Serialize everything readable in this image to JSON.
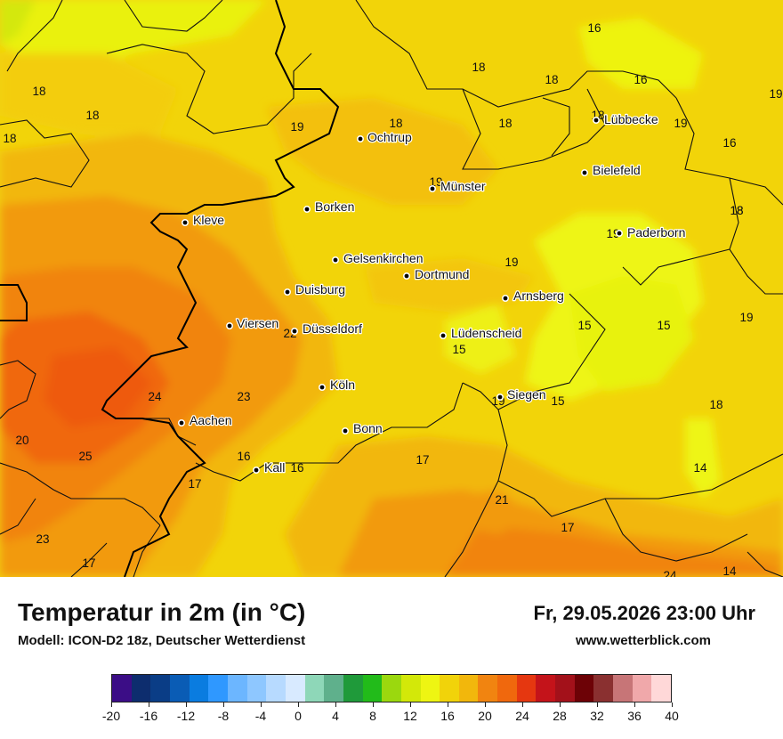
{
  "header": {
    "title": "Temperatur in 2m (in °C)",
    "model": "Modell: ICON-D2 18z, Deutscher Wetterdienst",
    "datetime": "Fr, 29.05.2026 23:00 Uhr",
    "website": "www.wetterblick.com"
  },
  "cities": [
    {
      "name": "Ochtrup"
    },
    {
      "name": "Lübbecke"
    },
    {
      "name": "Bielefeld"
    },
    {
      "name": "Münster"
    },
    {
      "name": "Borken"
    },
    {
      "name": "Kleve"
    },
    {
      "name": "Paderborn"
    },
    {
      "name": "Gelsenkirchen"
    },
    {
      "name": "Dortmund"
    },
    {
      "name": "Duisburg"
    },
    {
      "name": "Arnsberg"
    },
    {
      "name": "Viersen"
    },
    {
      "name": "Düsseldorf"
    },
    {
      "name": "Lüdenscheid"
    },
    {
      "name": "Köln"
    },
    {
      "name": "Siegen"
    },
    {
      "name": "Aachen"
    },
    {
      "name": "Bonn"
    },
    {
      "name": "Kall"
    }
  ],
  "temperature_labels": [
    "16",
    "18",
    "18",
    "16",
    "19",
    "18",
    "18",
    "18",
    "19",
    "18",
    "18",
    "18",
    "16",
    "18",
    "19",
    "19",
    "19",
    "18",
    "19",
    "19",
    "15",
    "15",
    "22",
    "15",
    "24",
    "23",
    "19",
    "15",
    "18",
    "20",
    "25",
    "16",
    "16",
    "17",
    "14",
    "17",
    "21",
    "17",
    "23",
    "17",
    "24",
    "14"
  ],
  "colorbar": {
    "colors": [
      "#3b0d86",
      "#0d2d6e",
      "#0a3d86",
      "#0a5cb5",
      "#0a7ce0",
      "#2f98ff",
      "#6cb6ff",
      "#8ec7ff",
      "#b7daff",
      "#d8eaff",
      "#8ed7b8",
      "#5fb08c",
      "#1f9a3a",
      "#22bb1a",
      "#9bd80e",
      "#d3e809",
      "#eef512",
      "#f1d30a",
      "#f2b70c",
      "#f18410",
      "#f0680d",
      "#e53710",
      "#c4131a",
      "#a3111a",
      "#6d0206",
      "#8a3030",
      "#c77577",
      "#f0a8aa",
      "#ffd8d8"
    ],
    "tick_labels": [
      "-20",
      "-16",
      "-12",
      "-8",
      "-4",
      "0",
      "4",
      "8",
      "12",
      "16",
      "20",
      "24",
      "28",
      "32",
      "36",
      "40"
    ]
  }
}
